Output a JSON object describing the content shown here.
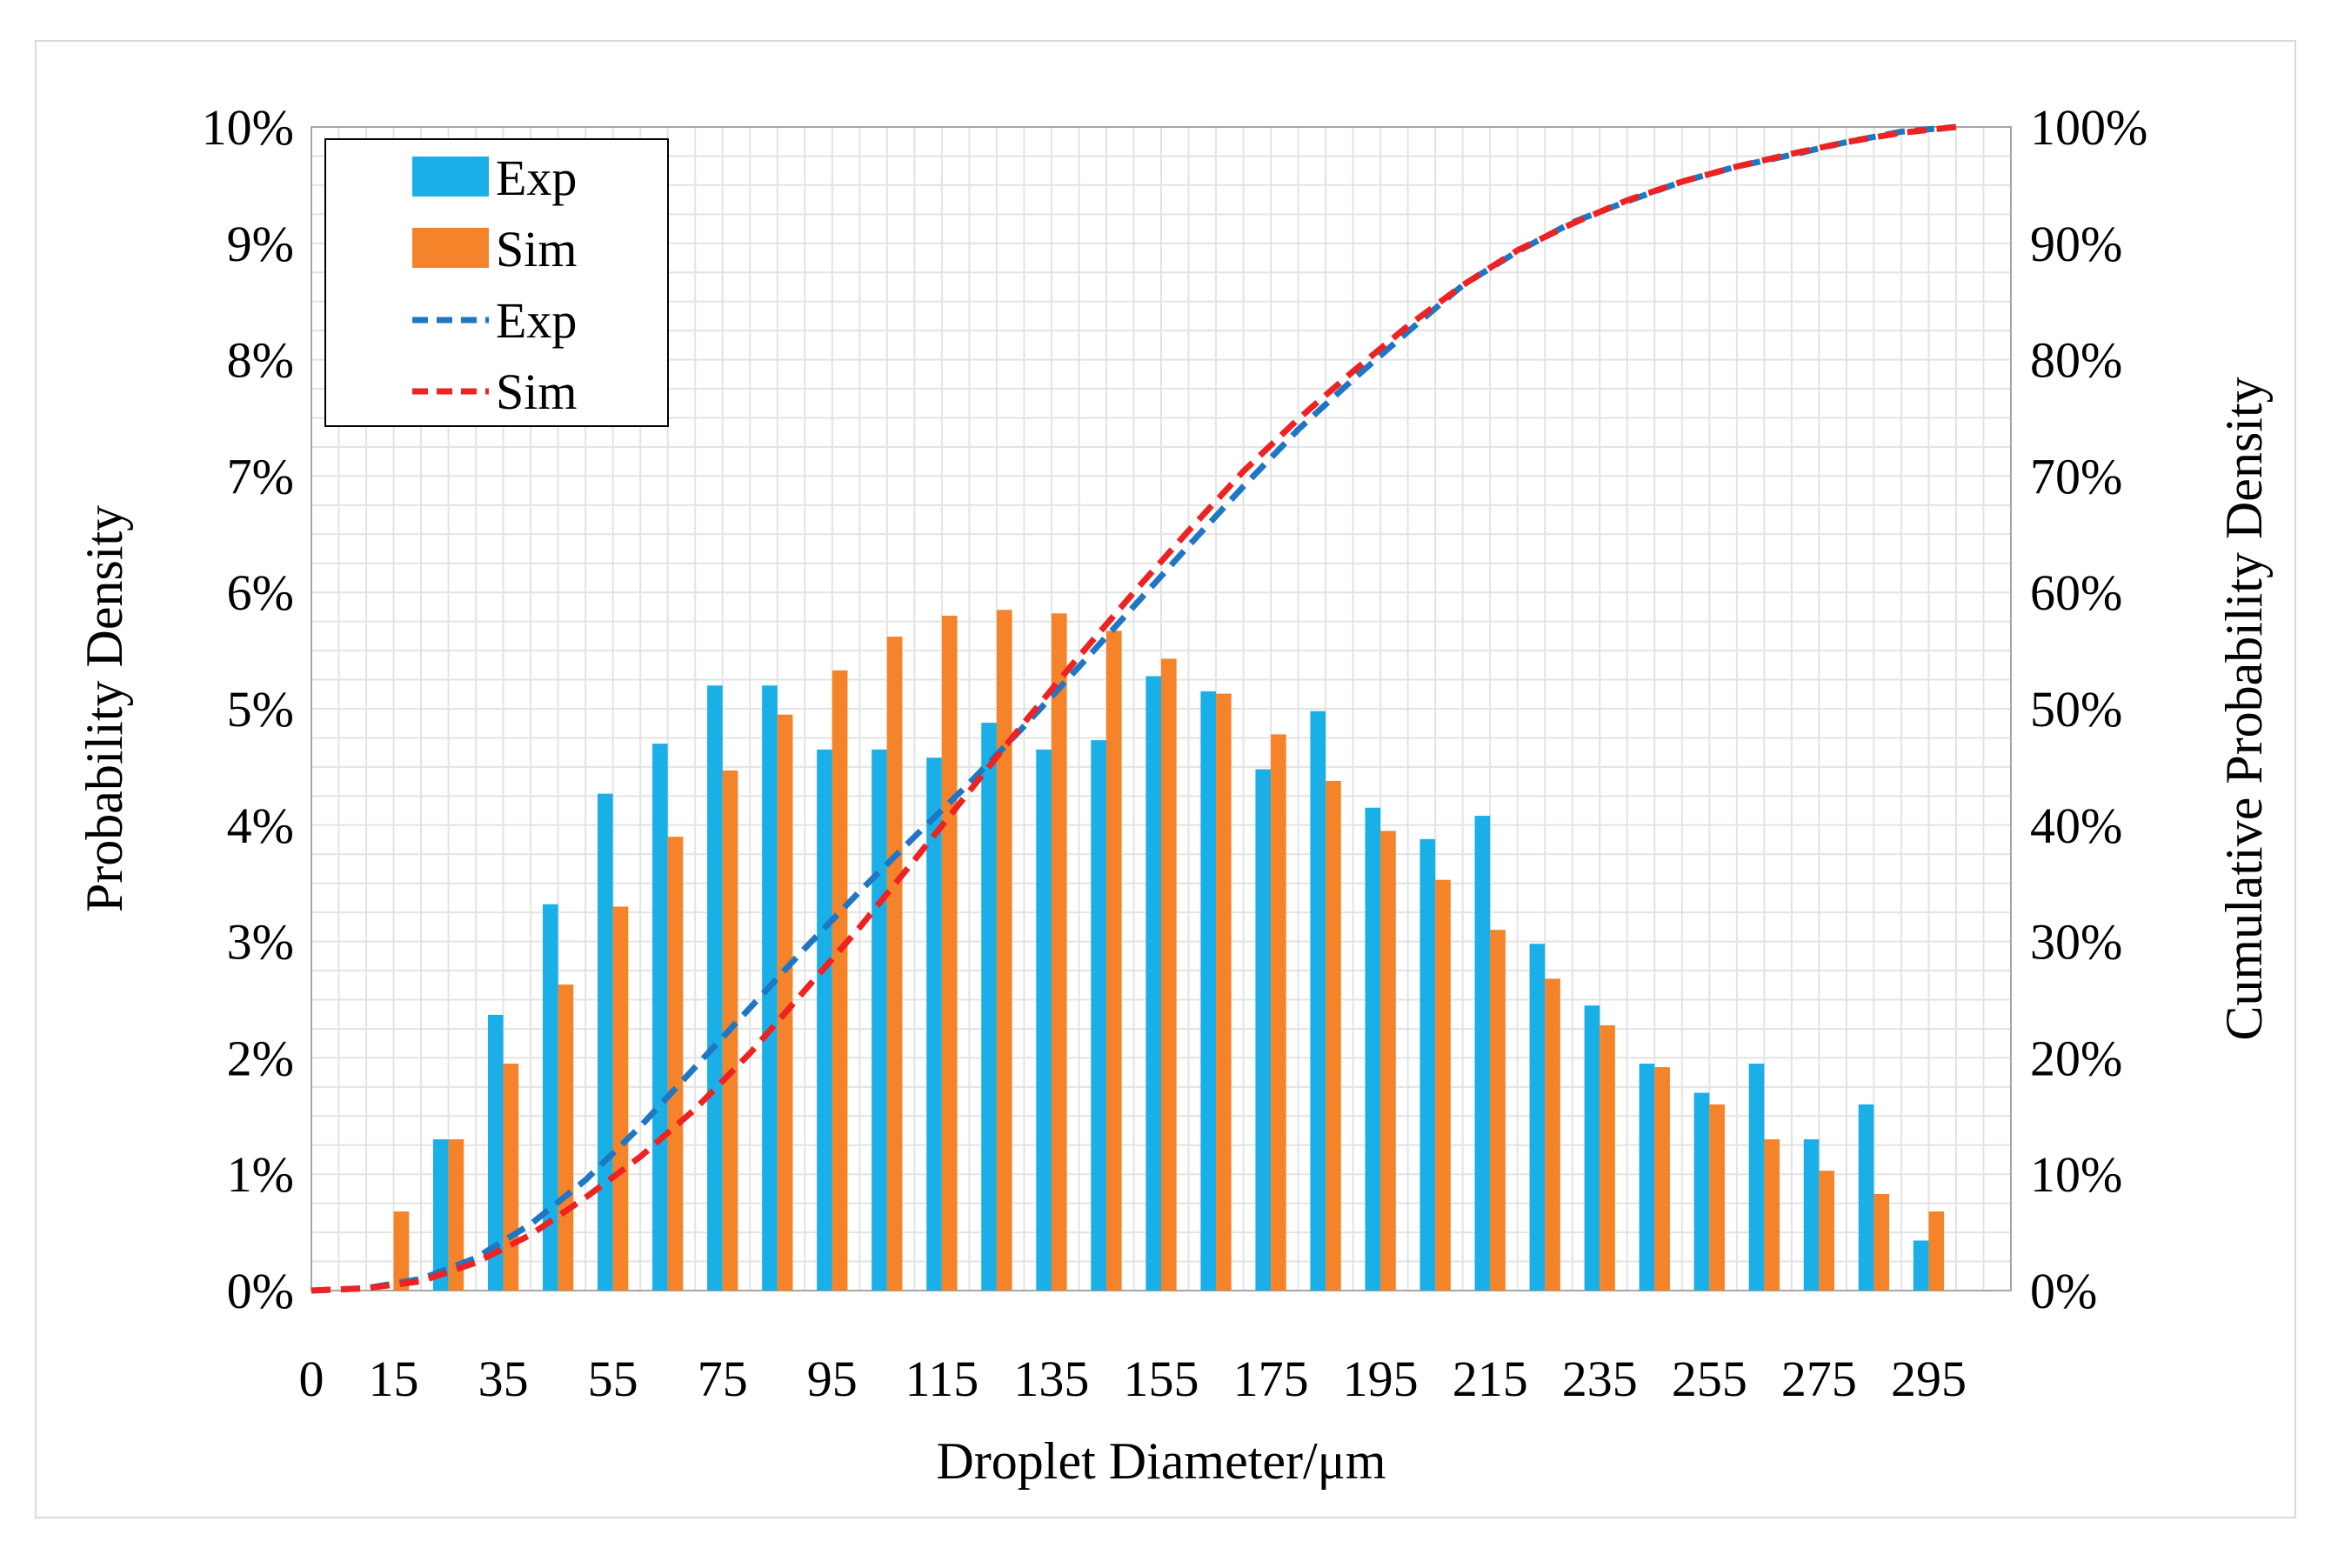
{
  "chart_data": {
    "type": "bar",
    "title": "",
    "xlabel": "Droplet Diameter/μm",
    "ylabel": "Probability Density",
    "y2label": "Cumulative Probability Density",
    "ylim": [
      0,
      10
    ],
    "y2lim": [
      0,
      100
    ],
    "grid": true,
    "legend_position": "top-left",
    "x_tick_labels": [
      "0",
      "15",
      "35",
      "55",
      "75",
      "95",
      "115",
      "135",
      "155",
      "175",
      "195",
      "215",
      "235",
      "255",
      "275",
      "295"
    ],
    "y_tick_labels": [
      "0%",
      "1%",
      "2%",
      "3%",
      "4%",
      "5%",
      "6%",
      "7%",
      "8%",
      "9%",
      "10%"
    ],
    "y2_tick_labels": [
      "0%",
      "10%",
      "20%",
      "30%",
      "40%",
      "50%",
      "60%",
      "70%",
      "80%",
      "90%",
      "100%"
    ],
    "categories": [
      5,
      15,
      25,
      35,
      45,
      55,
      65,
      75,
      85,
      95,
      105,
      115,
      125,
      135,
      145,
      155,
      165,
      175,
      185,
      195,
      205,
      215,
      225,
      235,
      245,
      255,
      265,
      275,
      285,
      295
    ],
    "series": [
      {
        "name": "Exp",
        "kind": "bar",
        "color": "#1AAFE6",
        "values": [
          0,
          0,
          1.3,
          2.37,
          3.32,
          4.27,
          4.7,
          5.2,
          5.2,
          4.65,
          4.65,
          4.58,
          4.88,
          4.65,
          4.73,
          5.28,
          5.15,
          4.48,
          4.98,
          4.15,
          3.88,
          4.08,
          2.98,
          2.45,
          1.95,
          1.7,
          1.95,
          1.3,
          1.6,
          0.43
        ]
      },
      {
        "name": "Sim",
        "kind": "bar",
        "color": "#F5832A",
        "values": [
          0,
          0.68,
          1.3,
          1.95,
          2.63,
          3.3,
          3.9,
          4.47,
          4.95,
          5.33,
          5.62,
          5.8,
          5.85,
          5.82,
          5.67,
          5.43,
          5.13,
          4.78,
          4.38,
          3.95,
          3.53,
          3.1,
          2.68,
          2.28,
          1.92,
          1.6,
          1.3,
          1.03,
          0.83,
          0.68
        ]
      },
      {
        "name": "Exp",
        "kind": "cumulative-line",
        "color": "#1F77C4",
        "x": [
          0,
          10,
          20,
          30,
          40,
          50,
          60,
          70,
          80,
          90,
          100,
          110,
          120,
          130,
          140,
          150,
          160,
          170,
          180,
          190,
          200,
          210,
          220,
          230,
          240,
          250,
          260,
          270,
          280,
          290,
          300
        ],
        "values": [
          0,
          0.2,
          1.0,
          2.8,
          5.7,
          9.5,
          14.1,
          19.2,
          24.3,
          29.4,
          34.3,
          39.0,
          43.6,
          48.5,
          53.6,
          58.8,
          64.0,
          69.1,
          74.0,
          78.3,
          82.4,
          86.4,
          89.3,
          91.8,
          93.6,
          95.3,
          96.6,
          97.6,
          98.7,
          99.6,
          100
        ]
      },
      {
        "name": "Sim",
        "kind": "cumulative-line",
        "color": "#EE2222",
        "x": [
          0,
          10,
          20,
          30,
          40,
          50,
          60,
          70,
          80,
          90,
          100,
          110,
          120,
          130,
          140,
          150,
          160,
          170,
          180,
          190,
          200,
          210,
          220,
          230,
          240,
          250,
          260,
          270,
          280,
          290,
          300
        ],
        "values": [
          0,
          0.2,
          0.8,
          2.4,
          4.8,
          8.0,
          11.5,
          15.6,
          20.4,
          25.8,
          31.2,
          37.0,
          42.9,
          48.8,
          54.5,
          60.0,
          65.3,
          70.4,
          74.9,
          79.0,
          82.9,
          86.4,
          89.4,
          91.7,
          93.7,
          95.3,
          96.6,
          97.7,
          98.7,
          99.5,
          100
        ]
      }
    ]
  }
}
